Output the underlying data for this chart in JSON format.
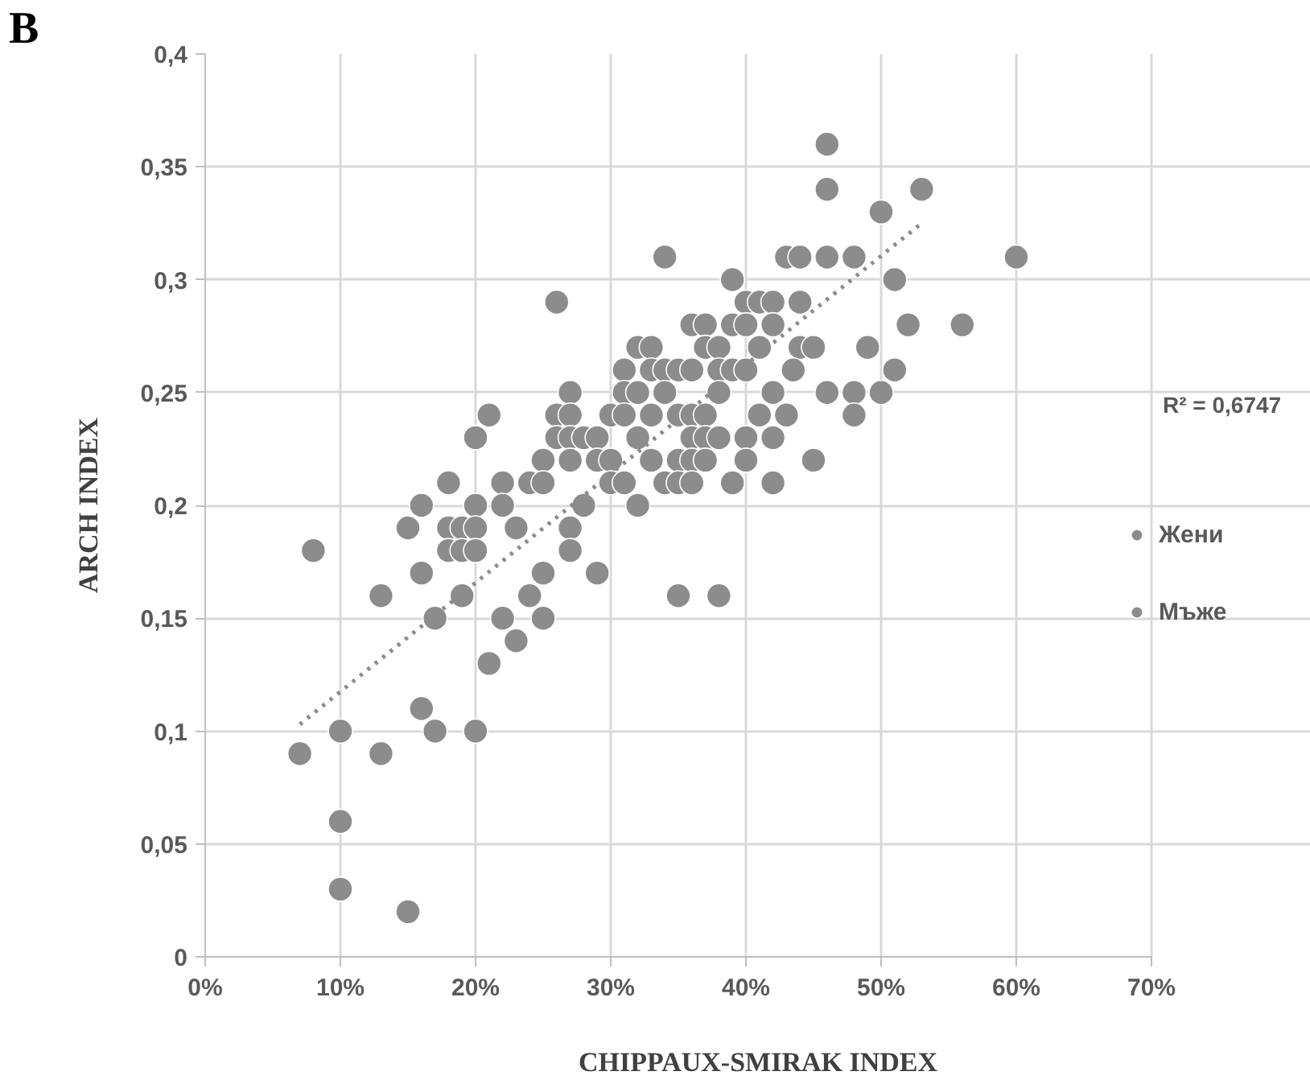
{
  "chart_data": {
    "type": "scatter",
    "title": "B",
    "xlabel": "CHIPPAUX-SMIRAK INDEX",
    "ylabel": "ARCH INDEX",
    "xlim": [
      0,
      0.7
    ],
    "xticks": [
      {
        "value": 0,
        "label": "0%"
      },
      {
        "value": 0.1,
        "label": "10%"
      },
      {
        "value": 0.2,
        "label": "20%"
      },
      {
        "value": 0.3,
        "label": "30%"
      },
      {
        "value": 0.4,
        "label": "40%"
      },
      {
        "value": 0.5,
        "label": "50%"
      },
      {
        "value": 0.6,
        "label": "60%"
      },
      {
        "value": 0.7,
        "label": "70%"
      }
    ],
    "ylim": [
      0,
      0.4
    ],
    "yticks": [
      {
        "value": 0,
        "label": "0"
      },
      {
        "value": 0.05,
        "label": "0,05"
      },
      {
        "value": 0.1,
        "label": "0,1"
      },
      {
        "value": 0.15,
        "label": "0,15"
      },
      {
        "value": 0.2,
        "label": "0,2"
      },
      {
        "value": 0.25,
        "label": "0,25"
      },
      {
        "value": 0.3,
        "label": "0,3"
      },
      {
        "value": 0.35,
        "label": "0,35"
      },
      {
        "value": 0.4,
        "label": "0,4"
      }
    ],
    "grid": true,
    "legend": "right",
    "marker": "circle",
    "annotations": [
      "R² = 0,6747"
    ],
    "series": [
      {
        "name": "Жени",
        "color": "#8c8c8c",
        "x": [
          0.07,
          0.08,
          0.1,
          0.1,
          0.1,
          0.13,
          0.13,
          0.15,
          0.15,
          0.16,
          0.16,
          0.16,
          0.17,
          0.17,
          0.18,
          0.18,
          0.18,
          0.19,
          0.19,
          0.19,
          0.2,
          0.2,
          0.2,
          0.2,
          0.2,
          0.21,
          0.21,
          0.22,
          0.22,
          0.22,
          0.23,
          0.23,
          0.24,
          0.24,
          0.25,
          0.25,
          0.25,
          0.25,
          0.26,
          0.26,
          0.26,
          0.27,
          0.27,
          0.27,
          0.27,
          0.27,
          0.27,
          0.28,
          0.28,
          0.29,
          0.29,
          0.29,
          0.3,
          0.3,
          0.3,
          0.31,
          0.31,
          0.31,
          0.31,
          0.32,
          0.32,
          0.32,
          0.32,
          0.33,
          0.33,
          0.33,
          0.33,
          0.34,
          0.34,
          0.34,
          0.34,
          0.35,
          0.35,
          0.35,
          0.35,
          0.35,
          0.36,
          0.36,
          0.36,
          0.36,
          0.36,
          0.36,
          0.37,
          0.37,
          0.37,
          0.37,
          0.37,
          0.38,
          0.38,
          0.38,
          0.38,
          0.38,
          0.39,
          0.39,
          0.39,
          0.39,
          0.4,
          0.4,
          0.4,
          0.4,
          0.4,
          0.41,
          0.41,
          0.41,
          0.42,
          0.42,
          0.42,
          0.42,
          0.42,
          0.43,
          0.43,
          0.44,
          0.44,
          0.44,
          0.435,
          0.45,
          0.45,
          0.46,
          0.46,
          0.46,
          0.46,
          0.48,
          0.48,
          0.48,
          0.49,
          0.5,
          0.5,
          0.51,
          0.51,
          0.52,
          0.53,
          0.56,
          0.6
        ],
        "values": [
          0.09,
          0.18,
          0.1,
          0.06,
          0.03,
          0.16,
          0.09,
          0.19,
          0.02,
          0.2,
          0.17,
          0.11,
          0.15,
          0.1,
          0.21,
          0.19,
          0.18,
          0.19,
          0.18,
          0.16,
          0.23,
          0.2,
          0.19,
          0.18,
          0.1,
          0.24,
          0.13,
          0.21,
          0.2,
          0.15,
          0.19,
          0.14,
          0.21,
          0.16,
          0.22,
          0.21,
          0.17,
          0.15,
          0.29,
          0.24,
          0.23,
          0.25,
          0.24,
          0.23,
          0.22,
          0.19,
          0.18,
          0.23,
          0.2,
          0.23,
          0.22,
          0.17,
          0.24,
          0.22,
          0.21,
          0.26,
          0.25,
          0.24,
          0.21,
          0.27,
          0.25,
          0.23,
          0.2,
          0.27,
          0.26,
          0.24,
          0.22,
          0.31,
          0.26,
          0.25,
          0.21,
          0.26,
          0.24,
          0.22,
          0.21,
          0.16,
          0.28,
          0.26,
          0.24,
          0.23,
          0.22,
          0.21,
          0.28,
          0.27,
          0.24,
          0.23,
          0.22,
          0.27,
          0.26,
          0.25,
          0.23,
          0.16,
          0.3,
          0.28,
          0.26,
          0.21,
          0.29,
          0.28,
          0.26,
          0.23,
          0.22,
          0.29,
          0.27,
          0.24,
          0.29,
          0.28,
          0.25,
          0.23,
          0.21,
          0.31,
          0.24,
          0.31,
          0.29,
          0.27,
          0.26,
          0.27,
          0.22,
          0.36,
          0.34,
          0.31,
          0.25,
          0.31,
          0.25,
          0.24,
          0.27,
          0.33,
          0.25,
          0.3,
          0.26,
          0.28,
          0.34,
          0.28,
          0.31
        ]
      },
      {
        "name": "Мъже",
        "color": "#8c8c8c"
      },
      {
        "type": "line",
        "color": "#8c8c8c",
        "line_style": "dotted",
        "marker": "none",
        "x": [
          0.07,
          0.53
        ],
        "values": [
          0.103,
          0.325
        ]
      }
    ]
  }
}
